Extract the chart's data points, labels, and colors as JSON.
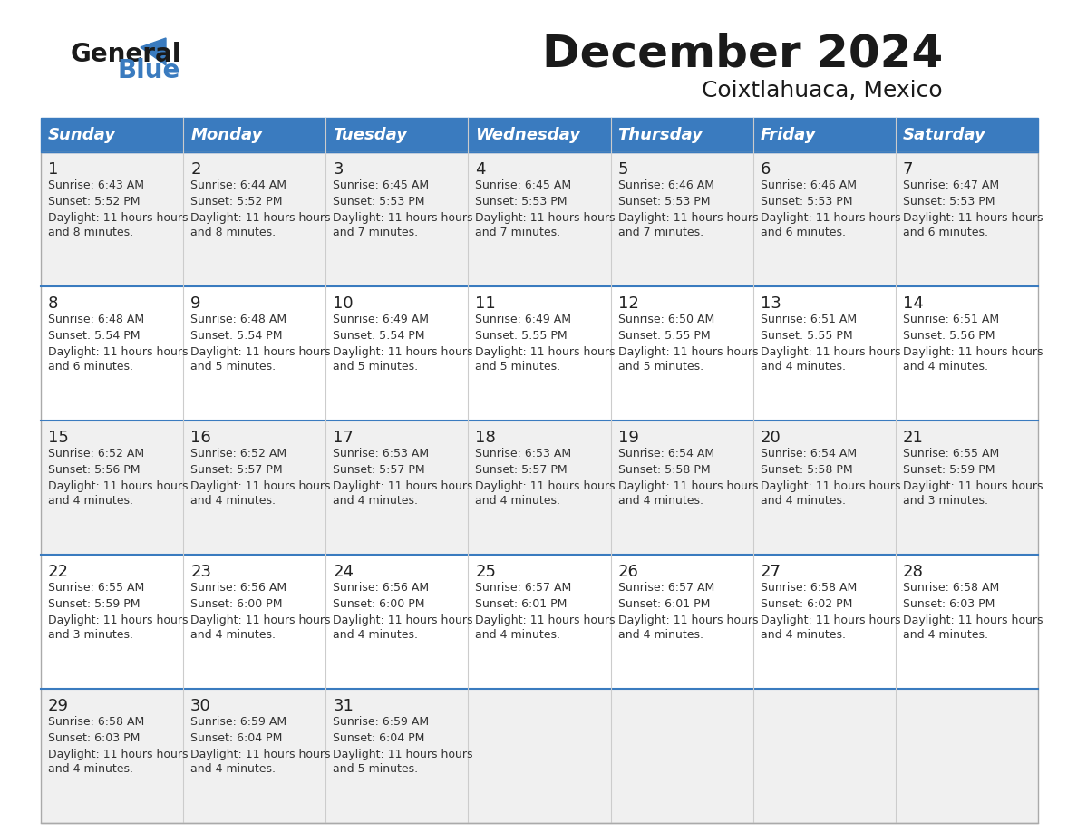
{
  "title": "December 2024",
  "subtitle": "Coixtlahuaca, Mexico",
  "header_color": "#3a7bbf",
  "header_text_color": "#ffffff",
  "cell_bg_color": "#f0f0f0",
  "cell_bg_color_alt": "#ffffff",
  "day_names": [
    "Sunday",
    "Monday",
    "Tuesday",
    "Wednesday",
    "Thursday",
    "Friday",
    "Saturday"
  ],
  "days": [
    {
      "day": 1,
      "col": 0,
      "row": 0,
      "sunrise": "6:43 AM",
      "sunset": "5:52 PM",
      "daylight": "11 hours and 8 minutes."
    },
    {
      "day": 2,
      "col": 1,
      "row": 0,
      "sunrise": "6:44 AM",
      "sunset": "5:52 PM",
      "daylight": "11 hours and 8 minutes."
    },
    {
      "day": 3,
      "col": 2,
      "row": 0,
      "sunrise": "6:45 AM",
      "sunset": "5:53 PM",
      "daylight": "11 hours and 7 minutes."
    },
    {
      "day": 4,
      "col": 3,
      "row": 0,
      "sunrise": "6:45 AM",
      "sunset": "5:53 PM",
      "daylight": "11 hours and 7 minutes."
    },
    {
      "day": 5,
      "col": 4,
      "row": 0,
      "sunrise": "6:46 AM",
      "sunset": "5:53 PM",
      "daylight": "11 hours and 7 minutes."
    },
    {
      "day": 6,
      "col": 5,
      "row": 0,
      "sunrise": "6:46 AM",
      "sunset": "5:53 PM",
      "daylight": "11 hours and 6 minutes."
    },
    {
      "day": 7,
      "col": 6,
      "row": 0,
      "sunrise": "6:47 AM",
      "sunset": "5:53 PM",
      "daylight": "11 hours and 6 minutes."
    },
    {
      "day": 8,
      "col": 0,
      "row": 1,
      "sunrise": "6:48 AM",
      "sunset": "5:54 PM",
      "daylight": "11 hours and 6 minutes."
    },
    {
      "day": 9,
      "col": 1,
      "row": 1,
      "sunrise": "6:48 AM",
      "sunset": "5:54 PM",
      "daylight": "11 hours and 5 minutes."
    },
    {
      "day": 10,
      "col": 2,
      "row": 1,
      "sunrise": "6:49 AM",
      "sunset": "5:54 PM",
      "daylight": "11 hours and 5 minutes."
    },
    {
      "day": 11,
      "col": 3,
      "row": 1,
      "sunrise": "6:49 AM",
      "sunset": "5:55 PM",
      "daylight": "11 hours and 5 minutes."
    },
    {
      "day": 12,
      "col": 4,
      "row": 1,
      "sunrise": "6:50 AM",
      "sunset": "5:55 PM",
      "daylight": "11 hours and 5 minutes."
    },
    {
      "day": 13,
      "col": 5,
      "row": 1,
      "sunrise": "6:51 AM",
      "sunset": "5:55 PM",
      "daylight": "11 hours and 4 minutes."
    },
    {
      "day": 14,
      "col": 6,
      "row": 1,
      "sunrise": "6:51 AM",
      "sunset": "5:56 PM",
      "daylight": "11 hours and 4 minutes."
    },
    {
      "day": 15,
      "col": 0,
      "row": 2,
      "sunrise": "6:52 AM",
      "sunset": "5:56 PM",
      "daylight": "11 hours and 4 minutes."
    },
    {
      "day": 16,
      "col": 1,
      "row": 2,
      "sunrise": "6:52 AM",
      "sunset": "5:57 PM",
      "daylight": "11 hours and 4 minutes."
    },
    {
      "day": 17,
      "col": 2,
      "row": 2,
      "sunrise": "6:53 AM",
      "sunset": "5:57 PM",
      "daylight": "11 hours and 4 minutes."
    },
    {
      "day": 18,
      "col": 3,
      "row": 2,
      "sunrise": "6:53 AM",
      "sunset": "5:57 PM",
      "daylight": "11 hours and 4 minutes."
    },
    {
      "day": 19,
      "col": 4,
      "row": 2,
      "sunrise": "6:54 AM",
      "sunset": "5:58 PM",
      "daylight": "11 hours and 4 minutes."
    },
    {
      "day": 20,
      "col": 5,
      "row": 2,
      "sunrise": "6:54 AM",
      "sunset": "5:58 PM",
      "daylight": "11 hours and 4 minutes."
    },
    {
      "day": 21,
      "col": 6,
      "row": 2,
      "sunrise": "6:55 AM",
      "sunset": "5:59 PM",
      "daylight": "11 hours and 3 minutes."
    },
    {
      "day": 22,
      "col": 0,
      "row": 3,
      "sunrise": "6:55 AM",
      "sunset": "5:59 PM",
      "daylight": "11 hours and 3 minutes."
    },
    {
      "day": 23,
      "col": 1,
      "row": 3,
      "sunrise": "6:56 AM",
      "sunset": "6:00 PM",
      "daylight": "11 hours and 4 minutes."
    },
    {
      "day": 24,
      "col": 2,
      "row": 3,
      "sunrise": "6:56 AM",
      "sunset": "6:00 PM",
      "daylight": "11 hours and 4 minutes."
    },
    {
      "day": 25,
      "col": 3,
      "row": 3,
      "sunrise": "6:57 AM",
      "sunset": "6:01 PM",
      "daylight": "11 hours and 4 minutes."
    },
    {
      "day": 26,
      "col": 4,
      "row": 3,
      "sunrise": "6:57 AM",
      "sunset": "6:01 PM",
      "daylight": "11 hours and 4 minutes."
    },
    {
      "day": 27,
      "col": 5,
      "row": 3,
      "sunrise": "6:58 AM",
      "sunset": "6:02 PM",
      "daylight": "11 hours and 4 minutes."
    },
    {
      "day": 28,
      "col": 6,
      "row": 3,
      "sunrise": "6:58 AM",
      "sunset": "6:03 PM",
      "daylight": "11 hours and 4 minutes."
    },
    {
      "day": 29,
      "col": 0,
      "row": 4,
      "sunrise": "6:58 AM",
      "sunset": "6:03 PM",
      "daylight": "11 hours and 4 minutes."
    },
    {
      "day": 30,
      "col": 1,
      "row": 4,
      "sunrise": "6:59 AM",
      "sunset": "6:04 PM",
      "daylight": "11 hours and 4 minutes."
    },
    {
      "day": 31,
      "col": 2,
      "row": 4,
      "sunrise": "6:59 AM",
      "sunset": "6:04 PM",
      "daylight": "11 hours and 5 minutes."
    }
  ]
}
